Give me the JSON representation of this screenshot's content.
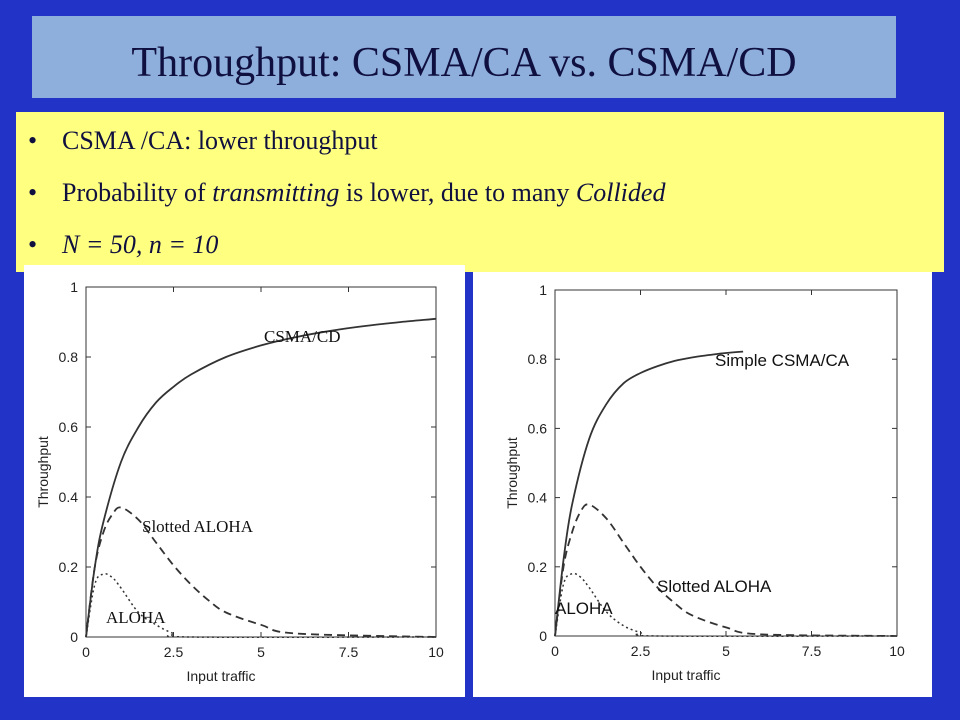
{
  "slide": {
    "title": "Throughput: CSMA/CA vs. CSMA/CD",
    "bullets": [
      {
        "dot": "•",
        "parts": [
          {
            "text": "CSMA /CA: lower throughput",
            "italic": false
          }
        ]
      },
      {
        "dot": "•",
        "parts": [
          {
            "text": "Probability of ",
            "italic": false
          },
          {
            "text": "transmitting",
            "italic": true
          },
          {
            "text": " is lower, due to many ",
            "italic": false
          },
          {
            "text": "Collided",
            "italic": true
          }
        ]
      },
      {
        "dot": "•",
        "parts": [
          {
            "text": "N = 50, n = 10",
            "italic": true
          }
        ]
      }
    ]
  },
  "chart_data": [
    {
      "type": "line",
      "xlabel": "Input traffic",
      "ylabel": "Throughput",
      "xlim": [
        0,
        10
      ],
      "ylim": [
        0,
        1
      ],
      "xticks": [
        "0",
        "2.5",
        "5",
        "7.5",
        "10"
      ],
      "yticks": [
        "0",
        "0.2",
        "0.4",
        "0.6",
        "0.8",
        "1"
      ],
      "series": [
        {
          "name": "CSMA/CD",
          "style": "solid",
          "x": [
            0,
            0.25,
            0.5,
            1,
            1.5,
            2,
            2.5,
            3,
            4,
            5,
            6,
            7,
            8,
            9,
            10
          ],
          "values": [
            0,
            0.2,
            0.33,
            0.5,
            0.6,
            0.67,
            0.715,
            0.75,
            0.8,
            0.833,
            0.857,
            0.875,
            0.889,
            0.9,
            0.909
          ]
        },
        {
          "name": "Slotted ALOHA",
          "style": "dashed",
          "x": [
            0,
            0.25,
            0.5,
            0.75,
            1,
            1.5,
            2,
            2.5,
            3,
            3.5,
            4,
            5,
            6,
            10
          ],
          "values": [
            0,
            0.2,
            0.3,
            0.35,
            0.37,
            0.335,
            0.27,
            0.205,
            0.15,
            0.105,
            0.07,
            0.035,
            0.01,
            0
          ]
        },
        {
          "name": "ALOHA",
          "style": "dotted",
          "x": [
            0,
            0.25,
            0.5,
            0.75,
            1,
            1.5,
            2,
            2.5,
            3,
            10
          ],
          "values": [
            0,
            0.15,
            0.18,
            0.17,
            0.14,
            0.07,
            0.035,
            0.01,
            0,
            0
          ]
        }
      ],
      "annotations": [
        "CSMA/CD",
        "Slotted ALOHA",
        "ALOHA"
      ]
    },
    {
      "type": "line",
      "xlabel": "Input traffic",
      "ylabel": "Throughput",
      "xlim": [
        0,
        10
      ],
      "ylim": [
        0,
        1
      ],
      "xticks": [
        "0",
        "2.5",
        "5",
        "7.5",
        "10"
      ],
      "yticks": [
        "0",
        "0.2",
        "0.4",
        "0.6",
        "0.8",
        "1"
      ],
      "series": [
        {
          "name": "Simple CSMA/CA",
          "style": "solid",
          "x": [
            0,
            0.25,
            0.5,
            1,
            1.5,
            2,
            2.5,
            3,
            3.5,
            4,
            4.5,
            5,
            5.5
          ],
          "values": [
            0,
            0.22,
            0.38,
            0.57,
            0.67,
            0.73,
            0.76,
            0.78,
            0.795,
            0.805,
            0.812,
            0.818,
            0.822
          ]
        },
        {
          "name": "Slotted ALOHA",
          "style": "dashed",
          "x": [
            0,
            0.25,
            0.5,
            0.75,
            1,
            1.5,
            2,
            2.5,
            3,
            3.5,
            4,
            5,
            6,
            10
          ],
          "values": [
            0,
            0.2,
            0.3,
            0.36,
            0.38,
            0.34,
            0.27,
            0.2,
            0.14,
            0.095,
            0.06,
            0.025,
            0.005,
            0
          ]
        },
        {
          "name": "ALOHA",
          "style": "dotted",
          "x": [
            0,
            0.25,
            0.5,
            0.75,
            1,
            1.5,
            2,
            2.5,
            3,
            10
          ],
          "values": [
            0,
            0.15,
            0.18,
            0.17,
            0.14,
            0.07,
            0.03,
            0.01,
            0,
            0
          ]
        }
      ],
      "annotations": [
        "Simple CSMA/CA",
        "Slotted ALOHA",
        "ALOHA"
      ]
    }
  ]
}
